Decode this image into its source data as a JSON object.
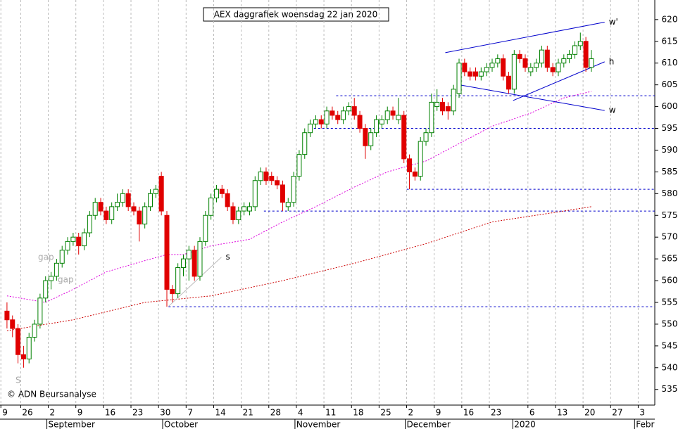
{
  "chart_data": {
    "type": "candlestick",
    "title": "AEX daggrafiek woensdag 22 jan 2020",
    "copyright": "© ADN Beursanalyse",
    "up_color": "#008000",
    "down_color": "#e00000",
    "ylim": [
      531.4,
      624.5
    ],
    "yticks": [
      535,
      540,
      545,
      550,
      555,
      560,
      565,
      570,
      575,
      580,
      585,
      590,
      595,
      600,
      605,
      610,
      615,
      620
    ],
    "xlim": [
      -0.5,
      117.5
    ],
    "xticks": [
      {
        "value": -0.6,
        "label": "9"
      },
      {
        "value": 3,
        "label": "26"
      },
      {
        "value": 8,
        "label": "2"
      },
      {
        "value": 13,
        "label": "9"
      },
      {
        "value": 18,
        "label": "16"
      },
      {
        "value": 23,
        "label": "23"
      },
      {
        "value": 28,
        "label": "30"
      },
      {
        "value": 33,
        "label": "7"
      },
      {
        "value": 38,
        "label": "14"
      },
      {
        "value": 43,
        "label": "21"
      },
      {
        "value": 48,
        "label": "28"
      },
      {
        "value": 53,
        "label": "4"
      },
      {
        "value": 58,
        "label": "11"
      },
      {
        "value": 63,
        "label": "18"
      },
      {
        "value": 68,
        "label": "25"
      },
      {
        "value": 73,
        "label": "2"
      },
      {
        "value": 78,
        "label": "9"
      },
      {
        "value": 83,
        "label": "16"
      },
      {
        "value": 88,
        "label": "23"
      },
      {
        "value": 95,
        "label": "6"
      },
      {
        "value": 100,
        "label": "13"
      },
      {
        "value": 105,
        "label": "20"
      },
      {
        "value": 110,
        "label": "27"
      },
      {
        "value": 115,
        "label": "3"
      }
    ],
    "months": [
      {
        "value": 8,
        "label": "September"
      },
      {
        "value": 29,
        "label": "October"
      },
      {
        "value": 53,
        "label": "November"
      },
      {
        "value": 73,
        "label": "December"
      },
      {
        "value": 92.5,
        "label": "2020"
      },
      {
        "value": 114.6,
        "label": "Febr"
      }
    ],
    "candles": [
      [
        553,
        555,
        549,
        551
      ],
      [
        551,
        552,
        547,
        549
      ],
      [
        549,
        550,
        541,
        543
      ],
      [
        543,
        545,
        540,
        542
      ],
      [
        542,
        548,
        541,
        547
      ],
      [
        547,
        551,
        546,
        550
      ],
      [
        550,
        557,
        549,
        556
      ],
      [
        556,
        561,
        555,
        560
      ],
      [
        560,
        562,
        558,
        561
      ],
      [
        561,
        565,
        560,
        564
      ],
      [
        564,
        568,
        563,
        567
      ],
      [
        567,
        570,
        566,
        569
      ],
      [
        569,
        571,
        568,
        570
      ],
      [
        570,
        571,
        566,
        568
      ],
      [
        568,
        572,
        567,
        571
      ],
      [
        571,
        576,
        570,
        575
      ],
      [
        575,
        579,
        574,
        578
      ],
      [
        578,
        579,
        575,
        576
      ],
      [
        576,
        577,
        573,
        574
      ],
      [
        574,
        578,
        573,
        577
      ],
      [
        577,
        580,
        576,
        578
      ],
      [
        578,
        581,
        577,
        580
      ],
      [
        580,
        581,
        576,
        577
      ],
      [
        577,
        578,
        575,
        576
      ],
      [
        576,
        577,
        569,
        573
      ],
      [
        573,
        578,
        572,
        577
      ],
      [
        577,
        581,
        576,
        580
      ],
      [
        580,
        582,
        579,
        581
      ],
      [
        584,
        585,
        575,
        576
      ],
      [
        575,
        576,
        554,
        558
      ],
      [
        558,
        559,
        555,
        557
      ],
      [
        557,
        564,
        556,
        563
      ],
      [
        563,
        566,
        561,
        565
      ],
      [
        565,
        568,
        560,
        567
      ],
      [
        567,
        568,
        560,
        561
      ],
      [
        561,
        570,
        560,
        569
      ],
      [
        569,
        576,
        568,
        575
      ],
      [
        575,
        580,
        574,
        579
      ],
      [
        579,
        582,
        578,
        581
      ],
      [
        581,
        582,
        579,
        580
      ],
      [
        580,
        581,
        576,
        577
      ],
      [
        577,
        578,
        573,
        574
      ],
      [
        574,
        577,
        573,
        576
      ],
      [
        576,
        578,
        575,
        577
      ],
      [
        576,
        578,
        575,
        577
      ],
      [
        577,
        584,
        576,
        583
      ],
      [
        583,
        586,
        582,
        585
      ],
      [
        585,
        586,
        582,
        583
      ],
      [
        584,
        585,
        582,
        583
      ],
      [
        583,
        584,
        581,
        582
      ],
      [
        582,
        583,
        576,
        578
      ],
      [
        577,
        579,
        576,
        578
      ],
      [
        578,
        585,
        577,
        584
      ],
      [
        584,
        590,
        583,
        589
      ],
      [
        589,
        595,
        588,
        594
      ],
      [
        594,
        597,
        593,
        596
      ],
      [
        596,
        598,
        595,
        597
      ],
      [
        597,
        598,
        595,
        596
      ],
      [
        596,
        600,
        595,
        599
      ],
      [
        599,
        600,
        597,
        598
      ],
      [
        598,
        599,
        596,
        597
      ],
      [
        597,
        600,
        596,
        599
      ],
      [
        599,
        601,
        598,
        600
      ],
      [
        600,
        602,
        597,
        598
      ],
      [
        598,
        599,
        594,
        595
      ],
      [
        595,
        596,
        588,
        591
      ],
      [
        591,
        595,
        590,
        594
      ],
      [
        594,
        598,
        593,
        597
      ],
      [
        596,
        598,
        595,
        597
      ],
      [
        597,
        600,
        596,
        599
      ],
      [
        599,
        600,
        597,
        598
      ],
      [
        597,
        602,
        596,
        598
      ],
      [
        598,
        599,
        587,
        588
      ],
      [
        588,
        589,
        581,
        585
      ],
      [
        585,
        586,
        583,
        584
      ],
      [
        584,
        593,
        583,
        592
      ],
      [
        592,
        595,
        591,
        594
      ],
      [
        594,
        603,
        593,
        601
      ],
      [
        600,
        604,
        599,
        601
      ],
      [
        601,
        602,
        598,
        599
      ],
      [
        600,
        601,
        597,
        599
      ],
      [
        599,
        605,
        598,
        604
      ],
      [
        603,
        611,
        602,
        610
      ],
      [
        610,
        611,
        607,
        608
      ],
      [
        608,
        609,
        606,
        607
      ],
      [
        608,
        609,
        606,
        607
      ],
      [
        607,
        609,
        606,
        608
      ],
      [
        608,
        610,
        607,
        609
      ],
      [
        609,
        611,
        608,
        610
      ],
      [
        610,
        612,
        609,
        611
      ],
      [
        611,
        612,
        606,
        607
      ],
      [
        607,
        608,
        603,
        604
      ],
      [
        604,
        613,
        603,
        612
      ],
      [
        612,
        613,
        610,
        611
      ],
      [
        611,
        612,
        608,
        609
      ],
      [
        608,
        610,
        607,
        609
      ],
      [
        609,
        611,
        608,
        610
      ],
      [
        610,
        614,
        609,
        613
      ],
      [
        613,
        614,
        608,
        609
      ],
      [
        609,
        610,
        607,
        608
      ],
      [
        608,
        611,
        607,
        610
      ],
      [
        610,
        612,
        609,
        611
      ],
      [
        611,
        613,
        610,
        612
      ],
      [
        612,
        615,
        611,
        614
      ],
      [
        614,
        617,
        613,
        615
      ],
      [
        615,
        616,
        608,
        609
      ],
      [
        609,
        613,
        608,
        611
      ]
    ],
    "series": [
      {
        "color": "#dd00dd",
        "x": [
          0,
          7,
          12,
          18,
          25,
          29,
          32,
          37,
          44,
          50,
          56,
          63,
          69,
          76,
          82,
          88,
          95,
          101,
          106
        ],
        "values": [
          556.5,
          555,
          558,
          562,
          564.6,
          566,
          566,
          568,
          569.5,
          573.5,
          577,
          581.5,
          585,
          587.5,
          591.5,
          595.5,
          598.5,
          602,
          603.5
        ]
      },
      {
        "color": "#cc0000",
        "x": [
          0,
          12,
          25,
          37,
          50,
          63,
          76,
          88,
          101,
          106
        ],
        "values": [
          548.5,
          551,
          555,
          556.5,
          560,
          564,
          568.5,
          573.5,
          576,
          577
        ]
      }
    ],
    "hlines": [
      {
        "value": 554,
        "from": 29.3
      },
      {
        "value": 576,
        "from": 46.6
      },
      {
        "value": 581,
        "from": 72.5
      },
      {
        "value": 595,
        "from": 54.9
      },
      {
        "value": 602.5,
        "from": 59.7
      }
    ],
    "trendlines": [
      {
        "label": "w'",
        "color": "#0000cc",
        "x": [
          79.5,
          108.4
        ],
        "y": [
          612.4,
          619.4
        ]
      },
      {
        "label": "w",
        "color": "#0000cc",
        "x": [
          81.6,
          108.4
        ],
        "y": [
          605.1,
          599.1
        ]
      },
      {
        "label": "h",
        "color": "#0000cc",
        "x": [
          91.8,
          108.4
        ],
        "y": [
          601.4,
          610.3
        ]
      },
      {
        "label": "s",
        "color": "#bbbbbb",
        "x": [
          29.3,
          38.9
        ],
        "y": [
          554.1,
          565.4
        ]
      }
    ],
    "annotations": [
      "gap",
      "gap",
      "S"
    ]
  }
}
